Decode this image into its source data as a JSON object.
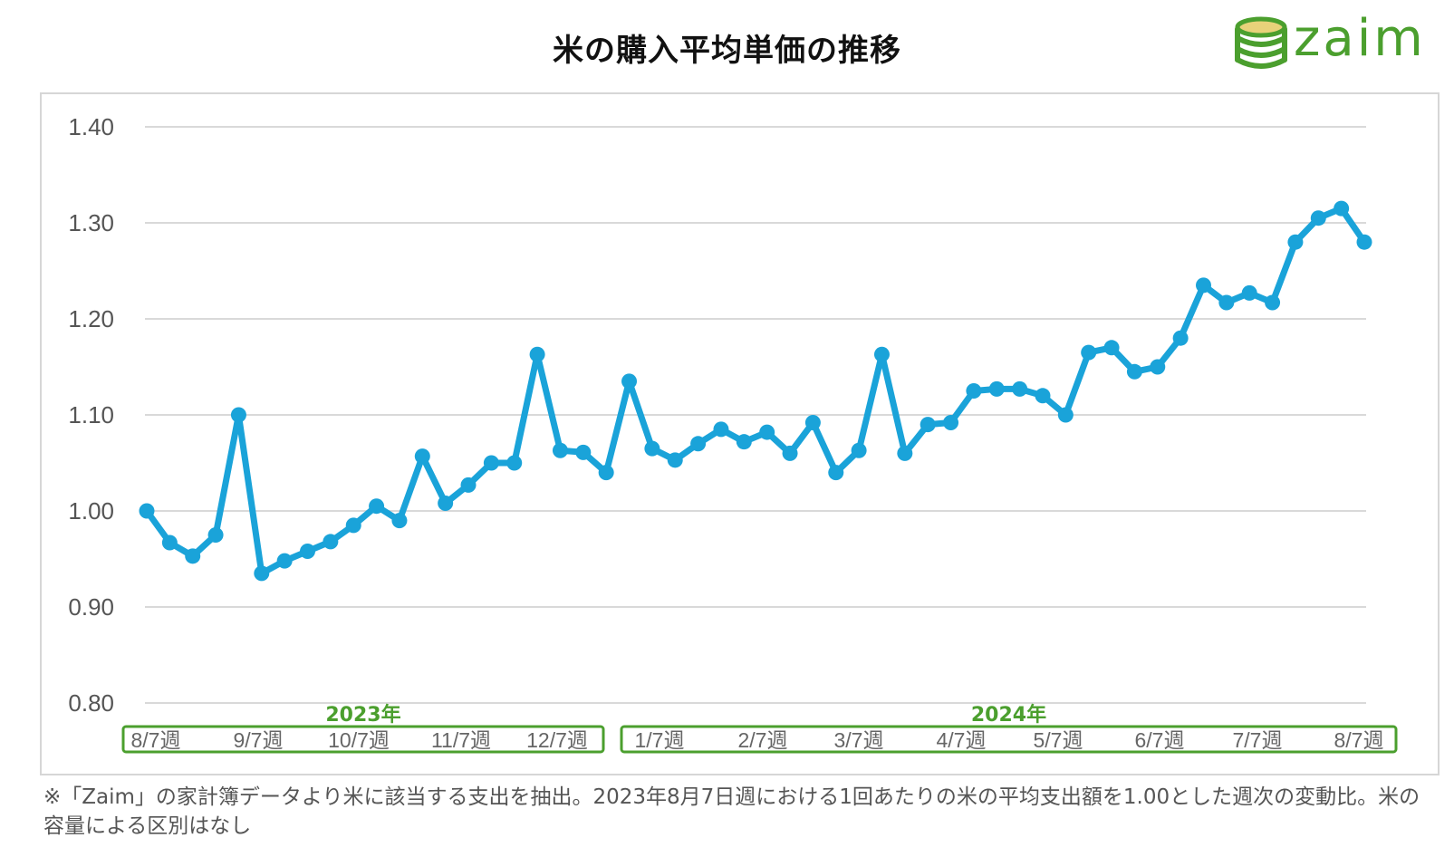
{
  "title": "米の購入平均単価の推移",
  "logo": {
    "text": "zaim",
    "icon": "coin-stack-icon",
    "color": "#4b9f2e"
  },
  "footnote": "※「Zaim」の家計簿データより米に該当する支出を抽出。2023年8月7日週における1回あたりの米の平均支出額を1.00とした週次の変動比。米の容量による区別はなし",
  "chart_data": {
    "type": "line",
    "title": "米の購入平均単価の推移",
    "xlabel": "",
    "ylabel": "",
    "ylim": [
      0.8,
      1.4
    ],
    "yticks": [
      "0.80",
      "0.90",
      "1.00",
      "1.10",
      "1.20",
      "1.30",
      "1.40"
    ],
    "grid": true,
    "legend": "none",
    "line_color": "#1aa3d9",
    "group_color": "#4b9f2e",
    "groups": [
      {
        "label": "2023年",
        "tick_labels": [
          "8/7週",
          "9/7週",
          "10/7週",
          "11/7週",
          "12/7週"
        ]
      },
      {
        "label": "2024年",
        "tick_labels": [
          "1/7週",
          "2/7週",
          "3/7週",
          "4/7週",
          "5/7週",
          "6/7週",
          "7/7週",
          "8/7週"
        ]
      }
    ],
    "series": [
      {
        "values": [
          1.0,
          0.967,
          0.953,
          0.975,
          1.1,
          0.935,
          0.948,
          0.958,
          0.968,
          0.985,
          1.005,
          0.99,
          1.057,
          1.008,
          1.027,
          1.05,
          1.05,
          1.163,
          1.063,
          1.061,
          1.04,
          1.135,
          1.065,
          1.053,
          1.07,
          1.085,
          1.072,
          1.082,
          1.06,
          1.092,
          1.04,
          1.063,
          1.163,
          1.06,
          1.09,
          1.092,
          1.125,
          1.127,
          1.127,
          1.12,
          1.1,
          1.165,
          1.17,
          1.145,
          1.15,
          1.18,
          1.235,
          1.217,
          1.227,
          1.217,
          1.28,
          1.305,
          1.315,
          1.28
        ]
      }
    ]
  }
}
